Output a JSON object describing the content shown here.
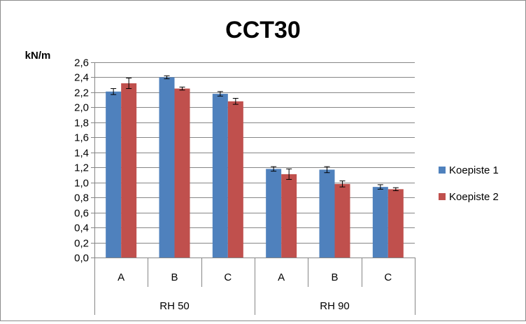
{
  "chart_data": {
    "type": "bar",
    "title": "CCT30",
    "ylabel": "kN/m",
    "xlabel": "",
    "ylim": [
      0,
      2.6
    ],
    "ytick_step": 0.2,
    "ytick_labels": [
      "0,0",
      "0,2",
      "0,4",
      "0,6",
      "0,8",
      "1,0",
      "1,2",
      "1,4",
      "1,6",
      "1,8",
      "2,0",
      "2,2",
      "2,4",
      "2,6"
    ],
    "groups": [
      {
        "label": "RH 50",
        "categories": [
          "A",
          "B",
          "C"
        ]
      },
      {
        "label": "RH 90",
        "categories": [
          "A",
          "B",
          "C"
        ]
      }
    ],
    "categories": [
      "A",
      "B",
      "C",
      "A",
      "B",
      "C"
    ],
    "series": [
      {
        "name": "Koepiste 1",
        "color": "#4f81bd",
        "values": [
          2.21,
          2.4,
          2.18,
          1.18,
          1.17,
          0.94
        ],
        "errors": [
          0.04,
          0.02,
          0.03,
          0.03,
          0.04,
          0.03
        ]
      },
      {
        "name": "Koepiste 2",
        "color": "#c0504d",
        "values": [
          2.32,
          2.25,
          2.08,
          1.11,
          0.98,
          0.91
        ],
        "errors": [
          0.07,
          0.02,
          0.04,
          0.07,
          0.04,
          0.02
        ]
      }
    ],
    "grid": true,
    "legend_position": "right"
  }
}
